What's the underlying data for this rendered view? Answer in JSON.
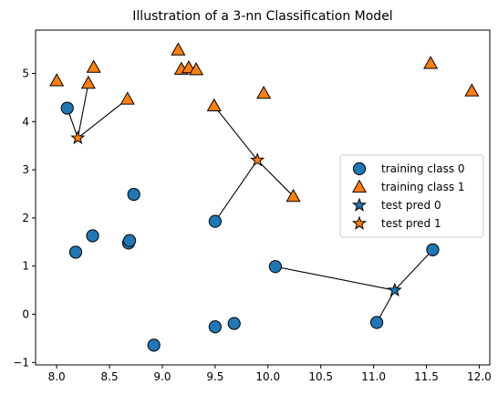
{
  "chart_data": {
    "type": "scatter",
    "title": "Illustration of a 3-nn Classification Model",
    "xlabel": "",
    "ylabel": "",
    "xlim": [
      7.8,
      12.1
    ],
    "ylim": [
      -1.05,
      5.9
    ],
    "xticks": [
      8.0,
      8.5,
      9.0,
      9.5,
      10.0,
      10.5,
      11.0,
      11.5,
      12.0
    ],
    "xtick_labels": [
      "8.0",
      "8.5",
      "9.0",
      "9.5",
      "10.0",
      "10.5",
      "11.0",
      "11.5",
      "12.0"
    ],
    "yticks": [
      -1,
      0,
      1,
      2,
      3,
      4,
      5
    ],
    "ytick_labels": [
      "−1",
      "0",
      "1",
      "2",
      "3",
      "4",
      "5"
    ],
    "grid": false,
    "legend_position": "center-right",
    "colors": {
      "class0": "#1f77b4",
      "class1": "#ff7f0e",
      "edge": "#000000"
    },
    "series": [
      {
        "name": "training class 0",
        "marker": "circle",
        "color": "#1f77b4",
        "points": [
          [
            8.1,
            4.28
          ],
          [
            8.18,
            1.29
          ],
          [
            8.34,
            1.63
          ],
          [
            8.68,
            1.48
          ],
          [
            8.69,
            1.53
          ],
          [
            8.73,
            2.49
          ],
          [
            8.92,
            -0.64
          ],
          [
            9.5,
            1.93
          ],
          [
            9.5,
            -0.26
          ],
          [
            9.68,
            -0.19
          ],
          [
            10.07,
            0.99
          ],
          [
            11.03,
            -0.17
          ],
          [
            11.56,
            1.34
          ]
        ]
      },
      {
        "name": "training class 1",
        "marker": "triangle",
        "color": "#ff7f0e",
        "points": [
          [
            8.0,
            4.85
          ],
          [
            8.3,
            4.8
          ],
          [
            8.35,
            5.13
          ],
          [
            8.67,
            4.47
          ],
          [
            9.15,
            5.49
          ],
          [
            9.18,
            5.09
          ],
          [
            9.25,
            5.12
          ],
          [
            9.32,
            5.08
          ],
          [
            9.49,
            4.33
          ],
          [
            9.96,
            4.59
          ],
          [
            10.24,
            2.45
          ],
          [
            11.54,
            5.21
          ],
          [
            11.93,
            4.64
          ]
        ]
      },
      {
        "name": "test pred 0",
        "marker": "star",
        "color": "#1f77b4",
        "points": [
          [
            11.2,
            0.5
          ]
        ]
      },
      {
        "name": "test pred 1",
        "marker": "star",
        "color": "#ff7f0e",
        "points": [
          [
            8.2,
            3.66
          ],
          [
            9.9,
            3.2
          ]
        ]
      }
    ],
    "neighbor_links": [
      {
        "from": [
          8.2,
          3.66
        ],
        "to": [
          [
            8.1,
            4.28
          ],
          [
            8.3,
            4.8
          ],
          [
            8.67,
            4.47
          ]
        ]
      },
      {
        "from": [
          9.9,
          3.2
        ],
        "to": [
          [
            9.49,
            4.33
          ],
          [
            9.5,
            1.93
          ],
          [
            10.24,
            2.45
          ]
        ]
      },
      {
        "from": [
          11.2,
          0.5
        ],
        "to": [
          [
            10.07,
            0.99
          ],
          [
            11.03,
            -0.17
          ],
          [
            11.56,
            1.34
          ]
        ]
      }
    ]
  }
}
